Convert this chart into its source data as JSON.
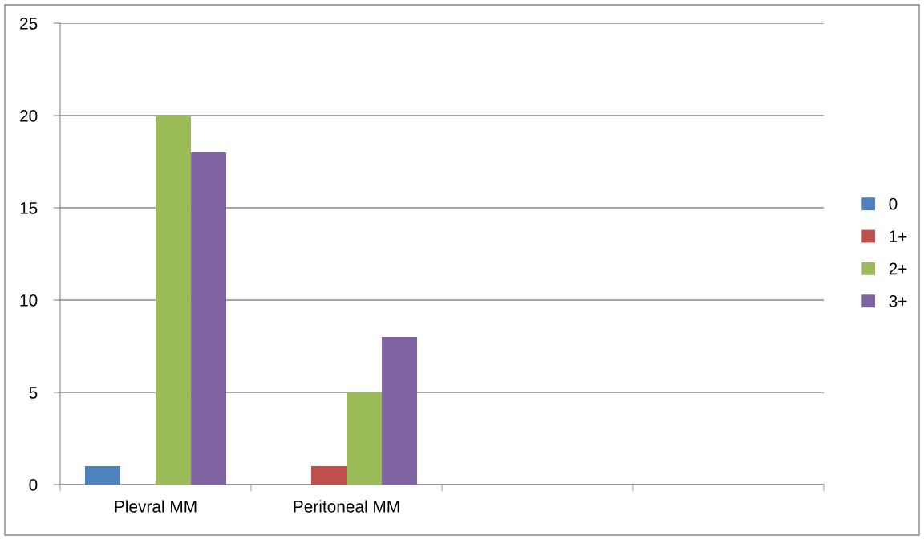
{
  "chart_data": {
    "type": "bar",
    "categories": [
      "Plevral MM",
      "Peritoneal MM",
      null,
      null
    ],
    "series": [
      {
        "name": "0",
        "color": "#4f81bd",
        "values": [
          1,
          0,
          null,
          null
        ]
      },
      {
        "name": "1+",
        "color": "#c0504d",
        "values": [
          0,
          1,
          null,
          null
        ]
      },
      {
        "name": "2+",
        "color": "#9bbb59",
        "values": [
          20,
          5,
          null,
          null
        ]
      },
      {
        "name": "3+",
        "color": "#8064a2",
        "values": [
          18,
          8,
          null,
          null
        ]
      }
    ],
    "ylim": [
      0,
      25
    ],
    "yticks": [
      0,
      5,
      10,
      15,
      20,
      25
    ],
    "grid": "y",
    "legend": "right"
  }
}
